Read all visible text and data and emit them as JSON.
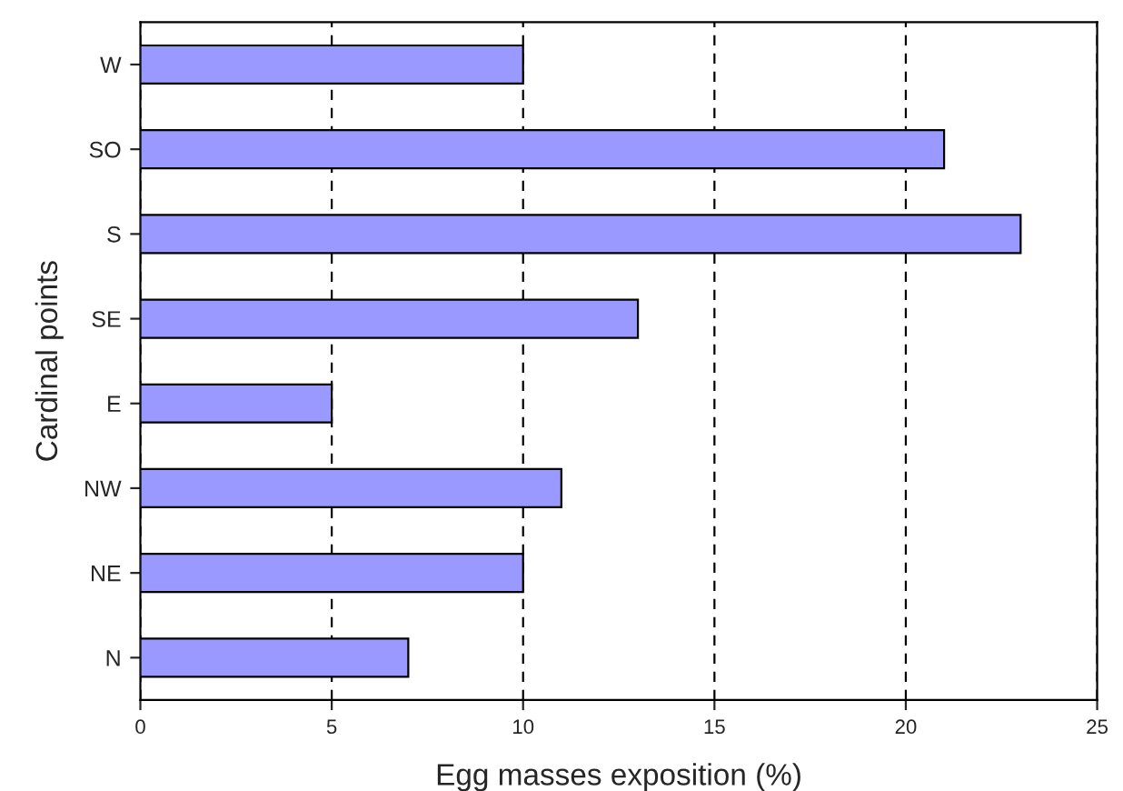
{
  "chart_data": {
    "type": "bar",
    "orientation": "horizontal",
    "xlabel": "Egg masses exposition (%)",
    "ylabel": "Cardinal points",
    "categories": [
      "W",
      "SO",
      "S",
      "SE",
      "E",
      "NW",
      "NE",
      "N"
    ],
    "values": [
      10,
      21,
      23,
      13,
      5,
      11,
      10,
      7
    ],
    "color": "#9999ff",
    "xlim": [
      0,
      25
    ],
    "xticks": [
      0,
      5,
      10,
      15,
      20,
      25
    ],
    "grid": "x",
    "legend": false
  }
}
